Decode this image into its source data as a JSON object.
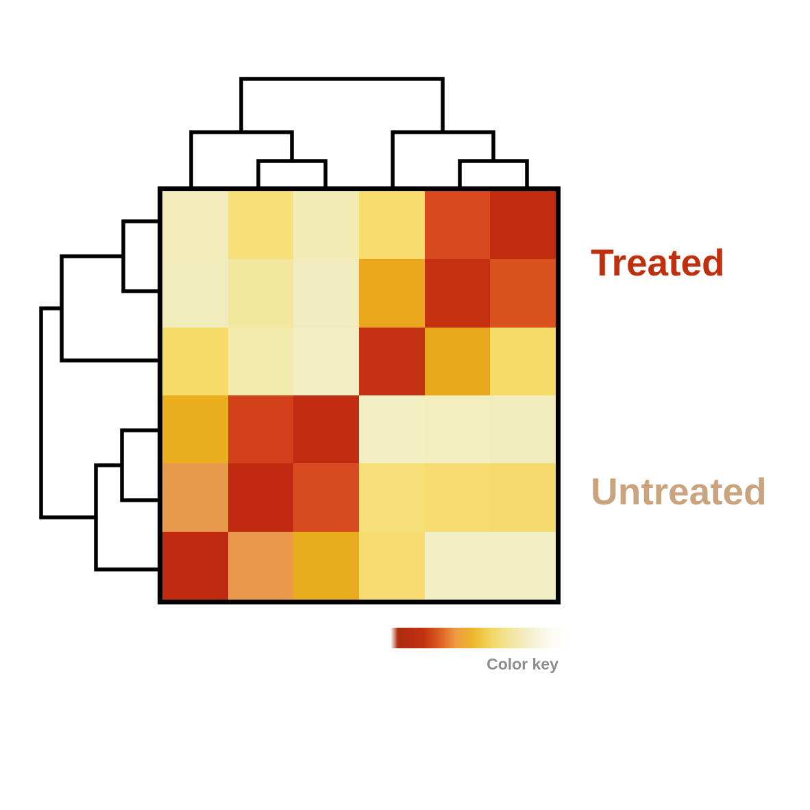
{
  "labels": {
    "treated": {
      "text": "Treated",
      "color": "#C0300E"
    },
    "untreated": {
      "text": "Untreated",
      "color": "#C9A47E"
    },
    "color_key": {
      "text": "Color key",
      "color": "#8D8D8D"
    }
  },
  "chart_data": {
    "type": "heatmap",
    "title": "",
    "description": "Hierarchically clustered sample-to-sample heatmap (6x6) with column dendrogram on top, row dendrogram on left, group labels on the right and a color key gradient below. No numeric values or tick labels are printed; cell values are conveyed purely by color (dark red = most similar / anti-diagonal, pale yellow = least).",
    "n_rows": 6,
    "n_cols": 6,
    "grid": false,
    "legend_position": "bottom",
    "row_groups": [
      {
        "label": "Treated",
        "rows": [
          0,
          1,
          2
        ]
      },
      {
        "label": "Untreated",
        "rows": [
          3,
          4,
          5
        ]
      }
    ],
    "cell_colors": [
      [
        "#F1ECB9",
        "#F6DF76",
        "#F2ECB4",
        "#F6DD6E",
        "#D7481E",
        "#C22D10"
      ],
      [
        "#F1ECBB",
        "#F3E79E",
        "#F1ECC0",
        "#EBA81E",
        "#C5310F",
        "#D8511F"
      ],
      [
        "#F6DB68",
        "#F2EAAE",
        "#F3EFC5",
        "#C33012",
        "#E9A71D",
        "#F6DB68"
      ],
      [
        "#EAAD1F",
        "#D2411C",
        "#C22C10",
        "#F2EFC3",
        "#F2EEC0",
        "#F1ECBB"
      ],
      [
        "#E99B4D",
        "#C12910",
        "#D84B20",
        "#F6DE78",
        "#F6DC70",
        "#F5DB6D"
      ],
      [
        "#BE2B10",
        "#E9984C",
        "#E9AB1E",
        "#F6DC6E",
        "#F2EFC4",
        "#F2EFC4"
      ]
    ],
    "dendrogram_color": "#000000",
    "dendrogram_stroke_width": 5.5,
    "column_dendrogram_structure": "((col1,(col2,col3)),(col4,(col5,col6)))",
    "row_dendrogram_structure": "(((row1,row2),row3),((row4,row5),row6))",
    "column_dendrogram_paths": [
      "M377,276 V235 H475 V276",
      "M279,276 V193 H426 V235",
      "M671,276 V235 H769 V276",
      "M573,276 V193 H720 V235",
      "M352,193 V115 H646 V193"
    ],
    "row_dendrogram_paths": [
      "M234,323 H180 V425 H234",
      "M180,374 H90 V526 H234",
      "M234,628 H178 V730 H234",
      "M178,679 H140 V831 H234",
      "M90,450 H60 V755 H140"
    ],
    "color_key_gradient": [
      {
        "color": "#FFFFFF",
        "pos": 0
      },
      {
        "color": "#AE2C10",
        "pos": 4
      },
      {
        "color": "#C23010",
        "pos": 18
      },
      {
        "color": "#DE6226",
        "pos": 28
      },
      {
        "color": "#EC9C42",
        "pos": 36
      },
      {
        "color": "#ECB42A",
        "pos": 45
      },
      {
        "color": "#F2D765",
        "pos": 56
      },
      {
        "color": "#F2E49A",
        "pos": 66
      },
      {
        "color": "#F3EEC6",
        "pos": 76
      },
      {
        "color": "#FCFBF2",
        "pos": 89
      },
      {
        "color": "#FFFFFF",
        "pos": 100
      }
    ]
  }
}
